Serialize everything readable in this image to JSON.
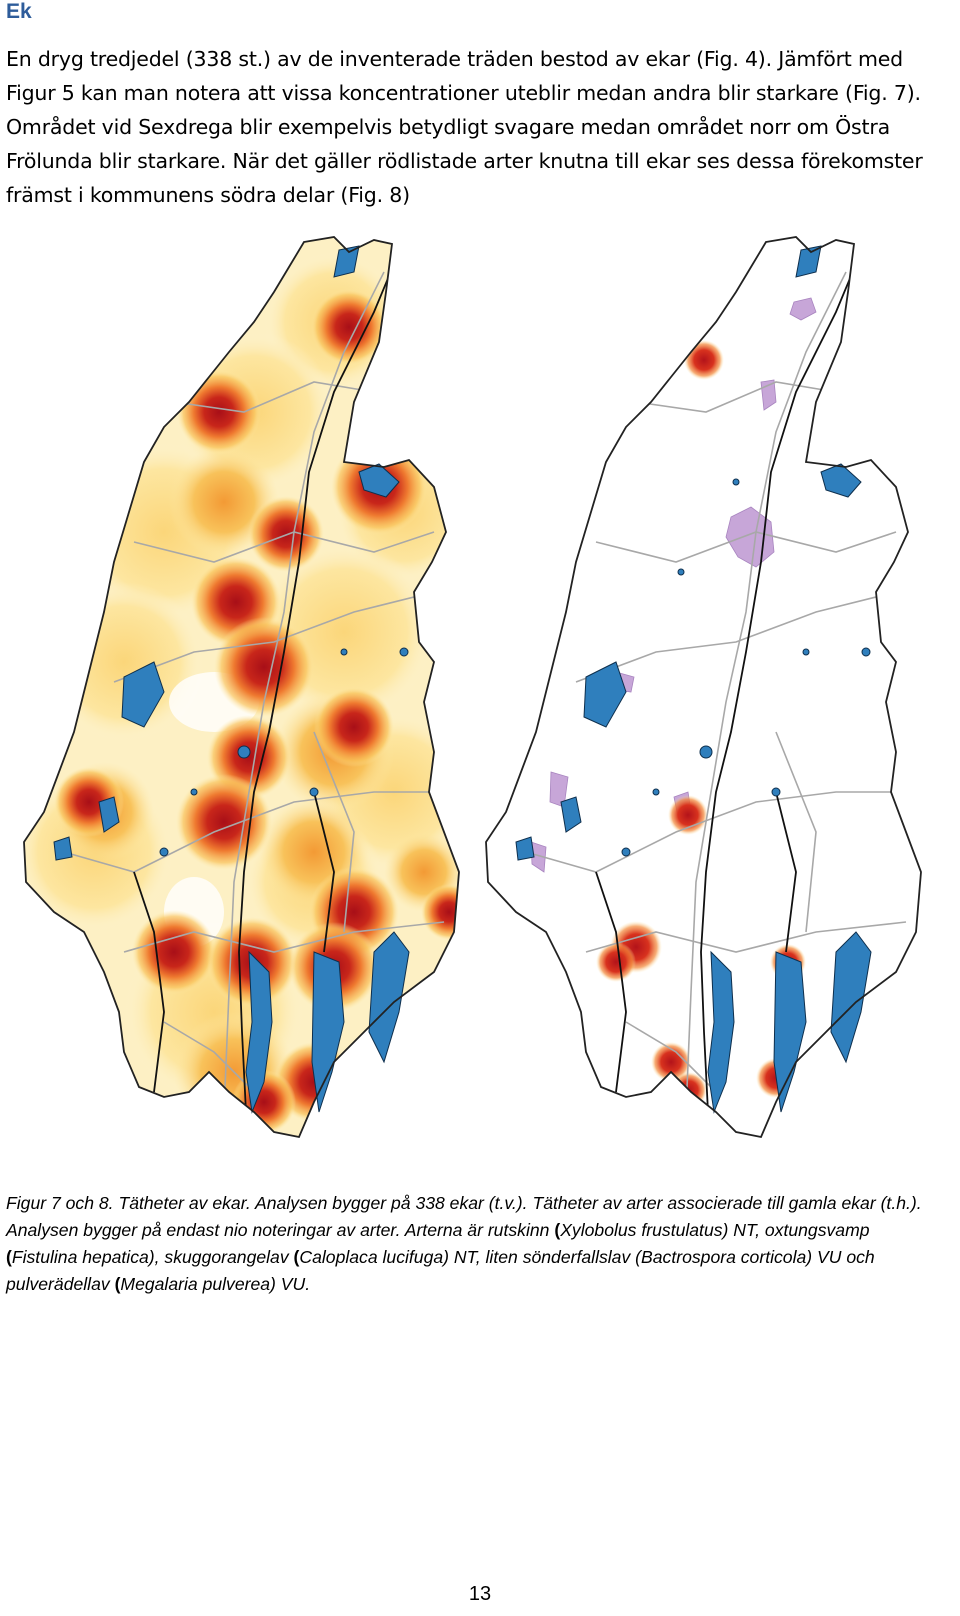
{
  "heading": "Ek",
  "paragraph": "En dryg tredjedel (338 st.) av de inventerade träden bestod av ekar (Fig. 4). Jämfört med Figur 5 kan man notera att vissa koncentrationer uteblir medan andra blir starkare (Fig. 7). Området vid Sexdrega blir exempelvis betydligt svagare medan området norr om Östra Frölunda blir starkare. När det gäller rödlistade arter knutna till ekar ses dessa förekomster främst i kommunens södra delar (Fig. 8)",
  "caption": {
    "part1": "Figur 7 och 8. Tätheter av ekar. Analysen bygger på 338 ekar (t.v.). Tätheter av arter associerade till gamla ekar (t.h.). Analysen bygger på endast nio noteringar av arter. Arterna är rutskinn ",
    "p1": "(",
    "species1": "Xylobolus frustulatus) NT, oxtungsvamp ",
    "p2": "(",
    "species2": "Fistulina hepatica), skuggorangelav ",
    "p3": "(",
    "species3": "Caloplaca lucifuga) NT, liten sönderfallslav (Bactrospora corticola) VU och pulverädellav ",
    "p4": "(",
    "species4": "Megalaria pulverea) VU."
  },
  "page_number": "13",
  "colors": {
    "heading": "#2e5c9a",
    "lake": "#2f7fbd",
    "heat_low": "#fde9a6",
    "heat_mid": "#f5a63a",
    "heat_high": "#b3131a",
    "species_purple": "#c7a6d8",
    "road": "#a8a8a8",
    "border": "#222222"
  }
}
